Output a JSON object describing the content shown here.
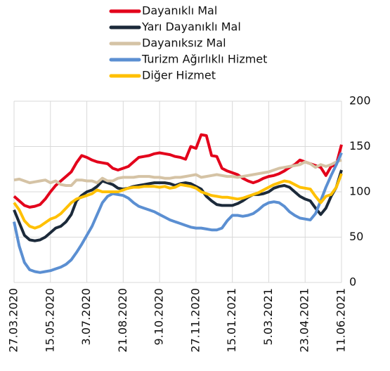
{
  "chart_data": {
    "type": "line",
    "categories": [
      "27.03.2020",
      null,
      null,
      null,
      null,
      null,
      null,
      "15.05.2020",
      null,
      null,
      null,
      null,
      null,
      null,
      "3.07.2020",
      null,
      null,
      null,
      null,
      null,
      null,
      "21.08.2020",
      null,
      null,
      null,
      null,
      null,
      null,
      "9.10.2020",
      null,
      null,
      null,
      null,
      null,
      null,
      "27.11.2020",
      null,
      null,
      null,
      null,
      null,
      null,
      "15.01.2021",
      null,
      null,
      null,
      null,
      null,
      null,
      "5.03.2021",
      null,
      null,
      null,
      null,
      null,
      null,
      "23.04.2021",
      null,
      null,
      null,
      null,
      null,
      null,
      "11.06.2021"
    ],
    "series": [
      {
        "name": "Dayanıklı Mal",
        "color": "#e3001b",
        "values": [
          95,
          90,
          85,
          83,
          84,
          86,
          92,
          100,
          107,
          112,
          117,
          122,
          132,
          140,
          138,
          135,
          133,
          132,
          131,
          126,
          124,
          126,
          128,
          133,
          138,
          139,
          140,
          142,
          143,
          142,
          141,
          139,
          138,
          136,
          150,
          148,
          163,
          162,
          140,
          139,
          126,
          123,
          121,
          119,
          115,
          112,
          110,
          112,
          115,
          117,
          118,
          120,
          123,
          127,
          130,
          135,
          133,
          131,
          129,
          127,
          118,
          128,
          130,
          152
        ]
      },
      {
        "name": "Yarı Dayanıklı Mal",
        "color": "#1c2a3a",
        "values": [
          80,
          66,
          52,
          47,
          46,
          47,
          50,
          55,
          60,
          62,
          67,
          75,
          90,
          96,
          100,
          102,
          106,
          112,
          110,
          108,
          104,
          103,
          104,
          106,
          107,
          108,
          109,
          110,
          110,
          110,
          109,
          107,
          109,
          110,
          109,
          106,
          103,
          95,
          90,
          86,
          85,
          85,
          85,
          87,
          90,
          94,
          97,
          97,
          98,
          100,
          104,
          106,
          107,
          105,
          100,
          95,
          92,
          90,
          82,
          75,
          82,
          95,
          105,
          124
        ]
      },
      {
        "name": "Dayanıksız Mal",
        "color": "#d5c3a5",
        "values": [
          113,
          114,
          112,
          110,
          111,
          112,
          113,
          110,
          112,
          108,
          107,
          107,
          113,
          113,
          112,
          112,
          110,
          115,
          112,
          112,
          115,
          116,
          116,
          116,
          117,
          117,
          117,
          116,
          116,
          115,
          115,
          116,
          116,
          117,
          118,
          119,
          116,
          117,
          118,
          119,
          118,
          117,
          117,
          116,
          117,
          118,
          119,
          120,
          121,
          122,
          124,
          126,
          127,
          128,
          129,
          130,
          133,
          131,
          127,
          130,
          128,
          130,
          133,
          135
        ]
      },
      {
        "name": "Turizm Ağırlıklı Hizmet",
        "color": "#5b8fd2",
        "values": [
          67,
          40,
          22,
          14,
          12,
          11,
          12,
          13,
          15,
          17,
          20,
          25,
          33,
          42,
          52,
          62,
          75,
          88,
          95,
          98,
          97,
          96,
          93,
          88,
          84,
          82,
          80,
          78,
          75,
          72,
          69,
          67,
          65,
          63,
          61,
          60,
          60,
          59,
          58,
          58,
          60,
          68,
          74,
          74,
          73,
          74,
          76,
          80,
          85,
          88,
          89,
          88,
          84,
          78,
          74,
          71,
          70,
          69,
          76,
          90,
          105,
          118,
          130,
          143
        ]
      },
      {
        "name": "Diğer Hizmet",
        "color": "#ffc000",
        "values": [
          88,
          80,
          68,
          62,
          60,
          62,
          66,
          70,
          72,
          76,
          82,
          88,
          92,
          94,
          96,
          98,
          102,
          100,
          100,
          100,
          100,
          102,
          104,
          105,
          105,
          106,
          106,
          106,
          105,
          106,
          104,
          105,
          108,
          107,
          106,
          104,
          100,
          98,
          96,
          95,
          94,
          94,
          93,
          92,
          93,
          95,
          97,
          99,
          102,
          105,
          108,
          110,
          112,
          111,
          108,
          105,
          104,
          103,
          95,
          88,
          95,
          97,
          105,
          120
        ]
      }
    ],
    "ylim": [
      0,
      200
    ],
    "yticks": [
      0,
      50,
      100,
      150,
      200
    ],
    "grid": true
  }
}
